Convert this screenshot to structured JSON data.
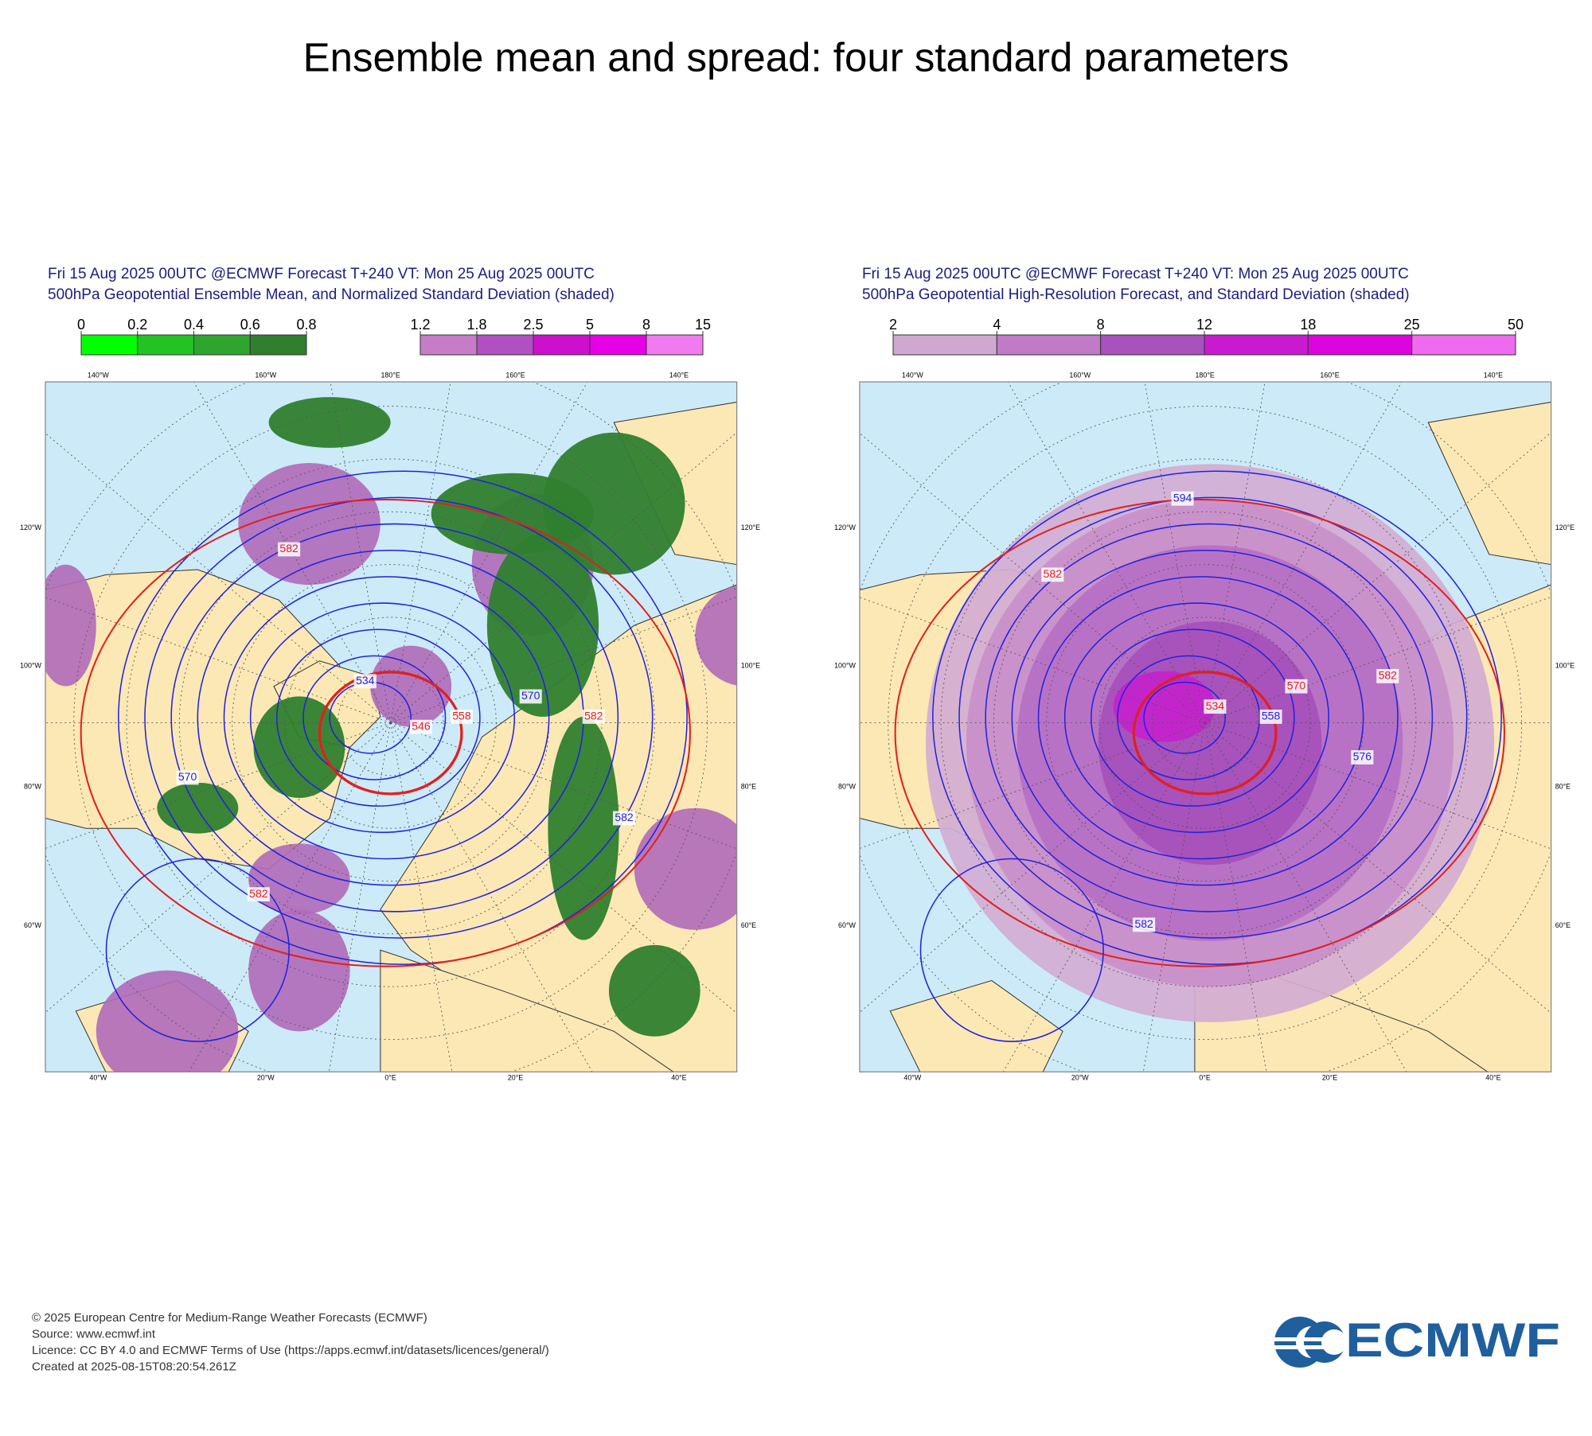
{
  "title": "Ensemble mean and spread: four standard parameters",
  "panels": [
    {
      "header": [
        "Fri 15 Aug 2025 00UTC @ECMWF Forecast T+240 VT: Mon 25 Aug 2025 00UTC",
        "500hPa Geopotential Ensemble Mean, and Normalized Standard Deviation (shaded)"
      ],
      "colorbars": [
        {
          "ticks": [
            0,
            0.2,
            0.4,
            0.6,
            0.8
          ],
          "colors": [
            "#00ff00",
            "#22c322",
            "#2fa52f",
            "#2f7f2f"
          ]
        },
        {
          "ticks": [
            1.2,
            1.8,
            2.5,
            5,
            8,
            15
          ],
          "colors": [
            "#c77cc7",
            "#b150c0",
            "#cc11cc",
            "#e600e6",
            "#f07af0"
          ]
        }
      ],
      "contour_labels": [
        582,
        534,
        558,
        570,
        546,
        570,
        582,
        582,
        582
      ]
    },
    {
      "header": [
        "Fri 15 Aug 2025 00UTC @ECMWF Forecast T+240 VT: Mon 25 Aug 2025 00UTC",
        "500hPa Geopotential High-Resolution Forecast, and Standard Deviation (shaded)"
      ],
      "colorbars": [
        {
          "ticks": [
            2,
            4,
            8,
            12,
            18,
            25,
            50
          ],
          "colors": [
            "#cfa8cf",
            "#c07ac6",
            "#a951bd",
            "#c81bd0",
            "#dd05dd",
            "#ee6aee"
          ]
        }
      ],
      "contour_labels": [
        582,
        594,
        534,
        558,
        570,
        576,
        582,
        582
      ]
    }
  ],
  "map_labels": {
    "top": [
      "140°W",
      "160°W",
      "180°E",
      "160°E",
      "140°E"
    ],
    "bottom": [
      "40°W",
      "20°W",
      "0°E",
      "20°E",
      "40°E"
    ],
    "left": [
      "120°W",
      "100°W",
      "80°W",
      "60°W"
    ],
    "right": [
      "120°E",
      "100°E",
      "80°E",
      "60°E"
    ]
  },
  "footer": [
    "© 2025 European Centre for Medium-Range Weather Forecasts (ECMWF)",
    "Source: www.ecmwf.int",
    "Licence: CC BY 4.0 and ECMWF Terms of Use (https://apps.ecmwf.int/datasets/licences/general/)",
    "Created at 2025-08-15T08:20:54.261Z"
  ],
  "logo": "ECMWF"
}
